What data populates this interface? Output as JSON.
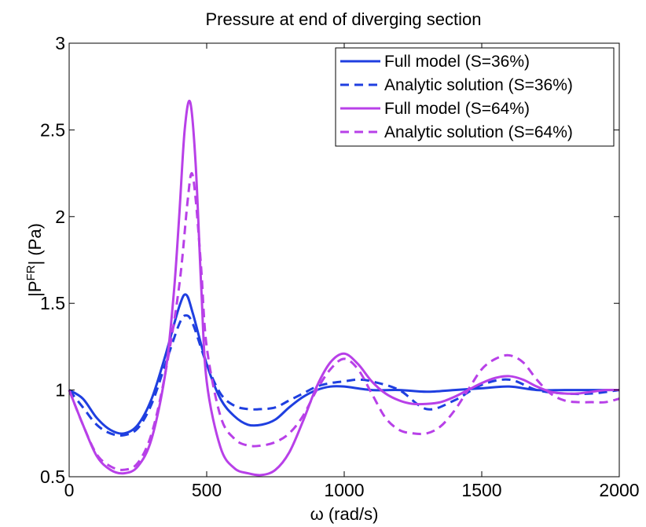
{
  "chart_data": {
    "type": "line",
    "title": "Pressure at end of diverging section",
    "xlabel": "ω (rad/s)",
    "ylabel": "|P",
    "ylabel_superscript": "FR",
    "ylabel_suffix": "| (Pa)",
    "xlim": [
      0,
      2000
    ],
    "ylim": [
      0.5,
      3
    ],
    "xticks": [
      0,
      500,
      1000,
      1500,
      2000
    ],
    "xtick_labels": [
      "0",
      "500",
      "1000",
      "1500",
      "2000"
    ],
    "yticks": [
      0.5,
      1,
      1.5,
      2,
      2.5,
      3
    ],
    "ytick_labels": [
      "0.5",
      "1",
      "1.5",
      "2",
      "2.5",
      "3"
    ],
    "grid": false,
    "legend_position": "top-right",
    "series": [
      {
        "name": "Full model (S=36%)",
        "color": "#1f3fe0",
        "dash": "solid",
        "x": [
          0,
          50,
          100,
          150,
          200,
          250,
          300,
          350,
          400,
          425,
          450,
          500,
          550,
          600,
          650,
          700,
          750,
          800,
          850,
          900,
          950,
          1000,
          1100,
          1200,
          1300,
          1400,
          1500,
          1600,
          1700,
          1800,
          1900,
          2000
        ],
        "y": [
          1.0,
          0.95,
          0.84,
          0.77,
          0.75,
          0.8,
          0.95,
          1.2,
          1.48,
          1.55,
          1.44,
          1.15,
          0.95,
          0.85,
          0.8,
          0.8,
          0.83,
          0.9,
          0.96,
          1.0,
          1.02,
          1.02,
          1.0,
          1.0,
          0.99,
          1.0,
          1.01,
          1.02,
          1.0,
          1.0,
          1.0,
          1.0
        ]
      },
      {
        "name": "Analytic solution (S=36%)",
        "color": "#1f3fe0",
        "dash": "dashed",
        "x": [
          0,
          50,
          100,
          150,
          200,
          250,
          300,
          350,
          400,
          425,
          450,
          500,
          550,
          600,
          650,
          700,
          750,
          800,
          850,
          900,
          950,
          1000,
          1050,
          1100,
          1200,
          1300,
          1400,
          1500,
          1600,
          1700,
          1800,
          1900,
          2000
        ],
        "y": [
          1.0,
          0.9,
          0.8,
          0.75,
          0.74,
          0.78,
          0.92,
          1.15,
          1.38,
          1.43,
          1.38,
          1.15,
          0.98,
          0.91,
          0.89,
          0.89,
          0.9,
          0.94,
          0.98,
          1.02,
          1.04,
          1.05,
          1.06,
          1.05,
          1.0,
          0.89,
          0.94,
          1.03,
          1.06,
          1.0,
          0.98,
          0.98,
          1.0
        ]
      },
      {
        "name": "Full model (S=64%)",
        "color": "#b840e8",
        "dash": "solid",
        "x": [
          0,
          50,
          100,
          150,
          200,
          250,
          300,
          350,
          380,
          400,
          420,
          440,
          460,
          480,
          500,
          550,
          600,
          650,
          700,
          750,
          800,
          850,
          900,
          950,
          1000,
          1050,
          1100,
          1150,
          1200,
          1250,
          1300,
          1350,
          1400,
          1450,
          1500,
          1550,
          1600,
          1650,
          1700,
          1750,
          1800,
          1850,
          1900,
          1950,
          2000
        ],
        "y": [
          1.0,
          0.8,
          0.62,
          0.54,
          0.52,
          0.56,
          0.72,
          1.1,
          1.55,
          2.0,
          2.5,
          2.66,
          2.3,
          1.6,
          1.05,
          0.67,
          0.55,
          0.52,
          0.51,
          0.54,
          0.64,
          0.82,
          1.02,
          1.16,
          1.21,
          1.15,
          1.05,
          0.98,
          0.94,
          0.92,
          0.92,
          0.93,
          0.96,
          1.0,
          1.04,
          1.07,
          1.08,
          1.06,
          1.02,
          0.99,
          0.98,
          0.98,
          0.99,
          1.0,
          1.0
        ]
      },
      {
        "name": "Analytic solution (S=64%)",
        "color": "#b840e8",
        "dash": "dashed",
        "x": [
          0,
          50,
          100,
          150,
          200,
          250,
          300,
          350,
          400,
          430,
          445,
          460,
          480,
          500,
          550,
          600,
          650,
          700,
          750,
          800,
          850,
          900,
          950,
          1000,
          1050,
          1100,
          1150,
          1200,
          1250,
          1300,
          1350,
          1400,
          1450,
          1500,
          1550,
          1600,
          1650,
          1700,
          1750,
          1800,
          1850,
          1900,
          1950,
          2000
        ],
        "y": [
          1.0,
          0.8,
          0.63,
          0.56,
          0.54,
          0.58,
          0.75,
          1.1,
          1.6,
          2.08,
          2.25,
          2.1,
          1.7,
          1.25,
          0.85,
          0.72,
          0.68,
          0.68,
          0.7,
          0.75,
          0.85,
          1.0,
          1.12,
          1.18,
          1.12,
          0.98,
          0.84,
          0.77,
          0.75,
          0.75,
          0.79,
          0.88,
          1.0,
          1.12,
          1.18,
          1.2,
          1.16,
          1.06,
          0.98,
          0.94,
          0.93,
          0.93,
          0.93,
          0.95
        ]
      }
    ]
  }
}
